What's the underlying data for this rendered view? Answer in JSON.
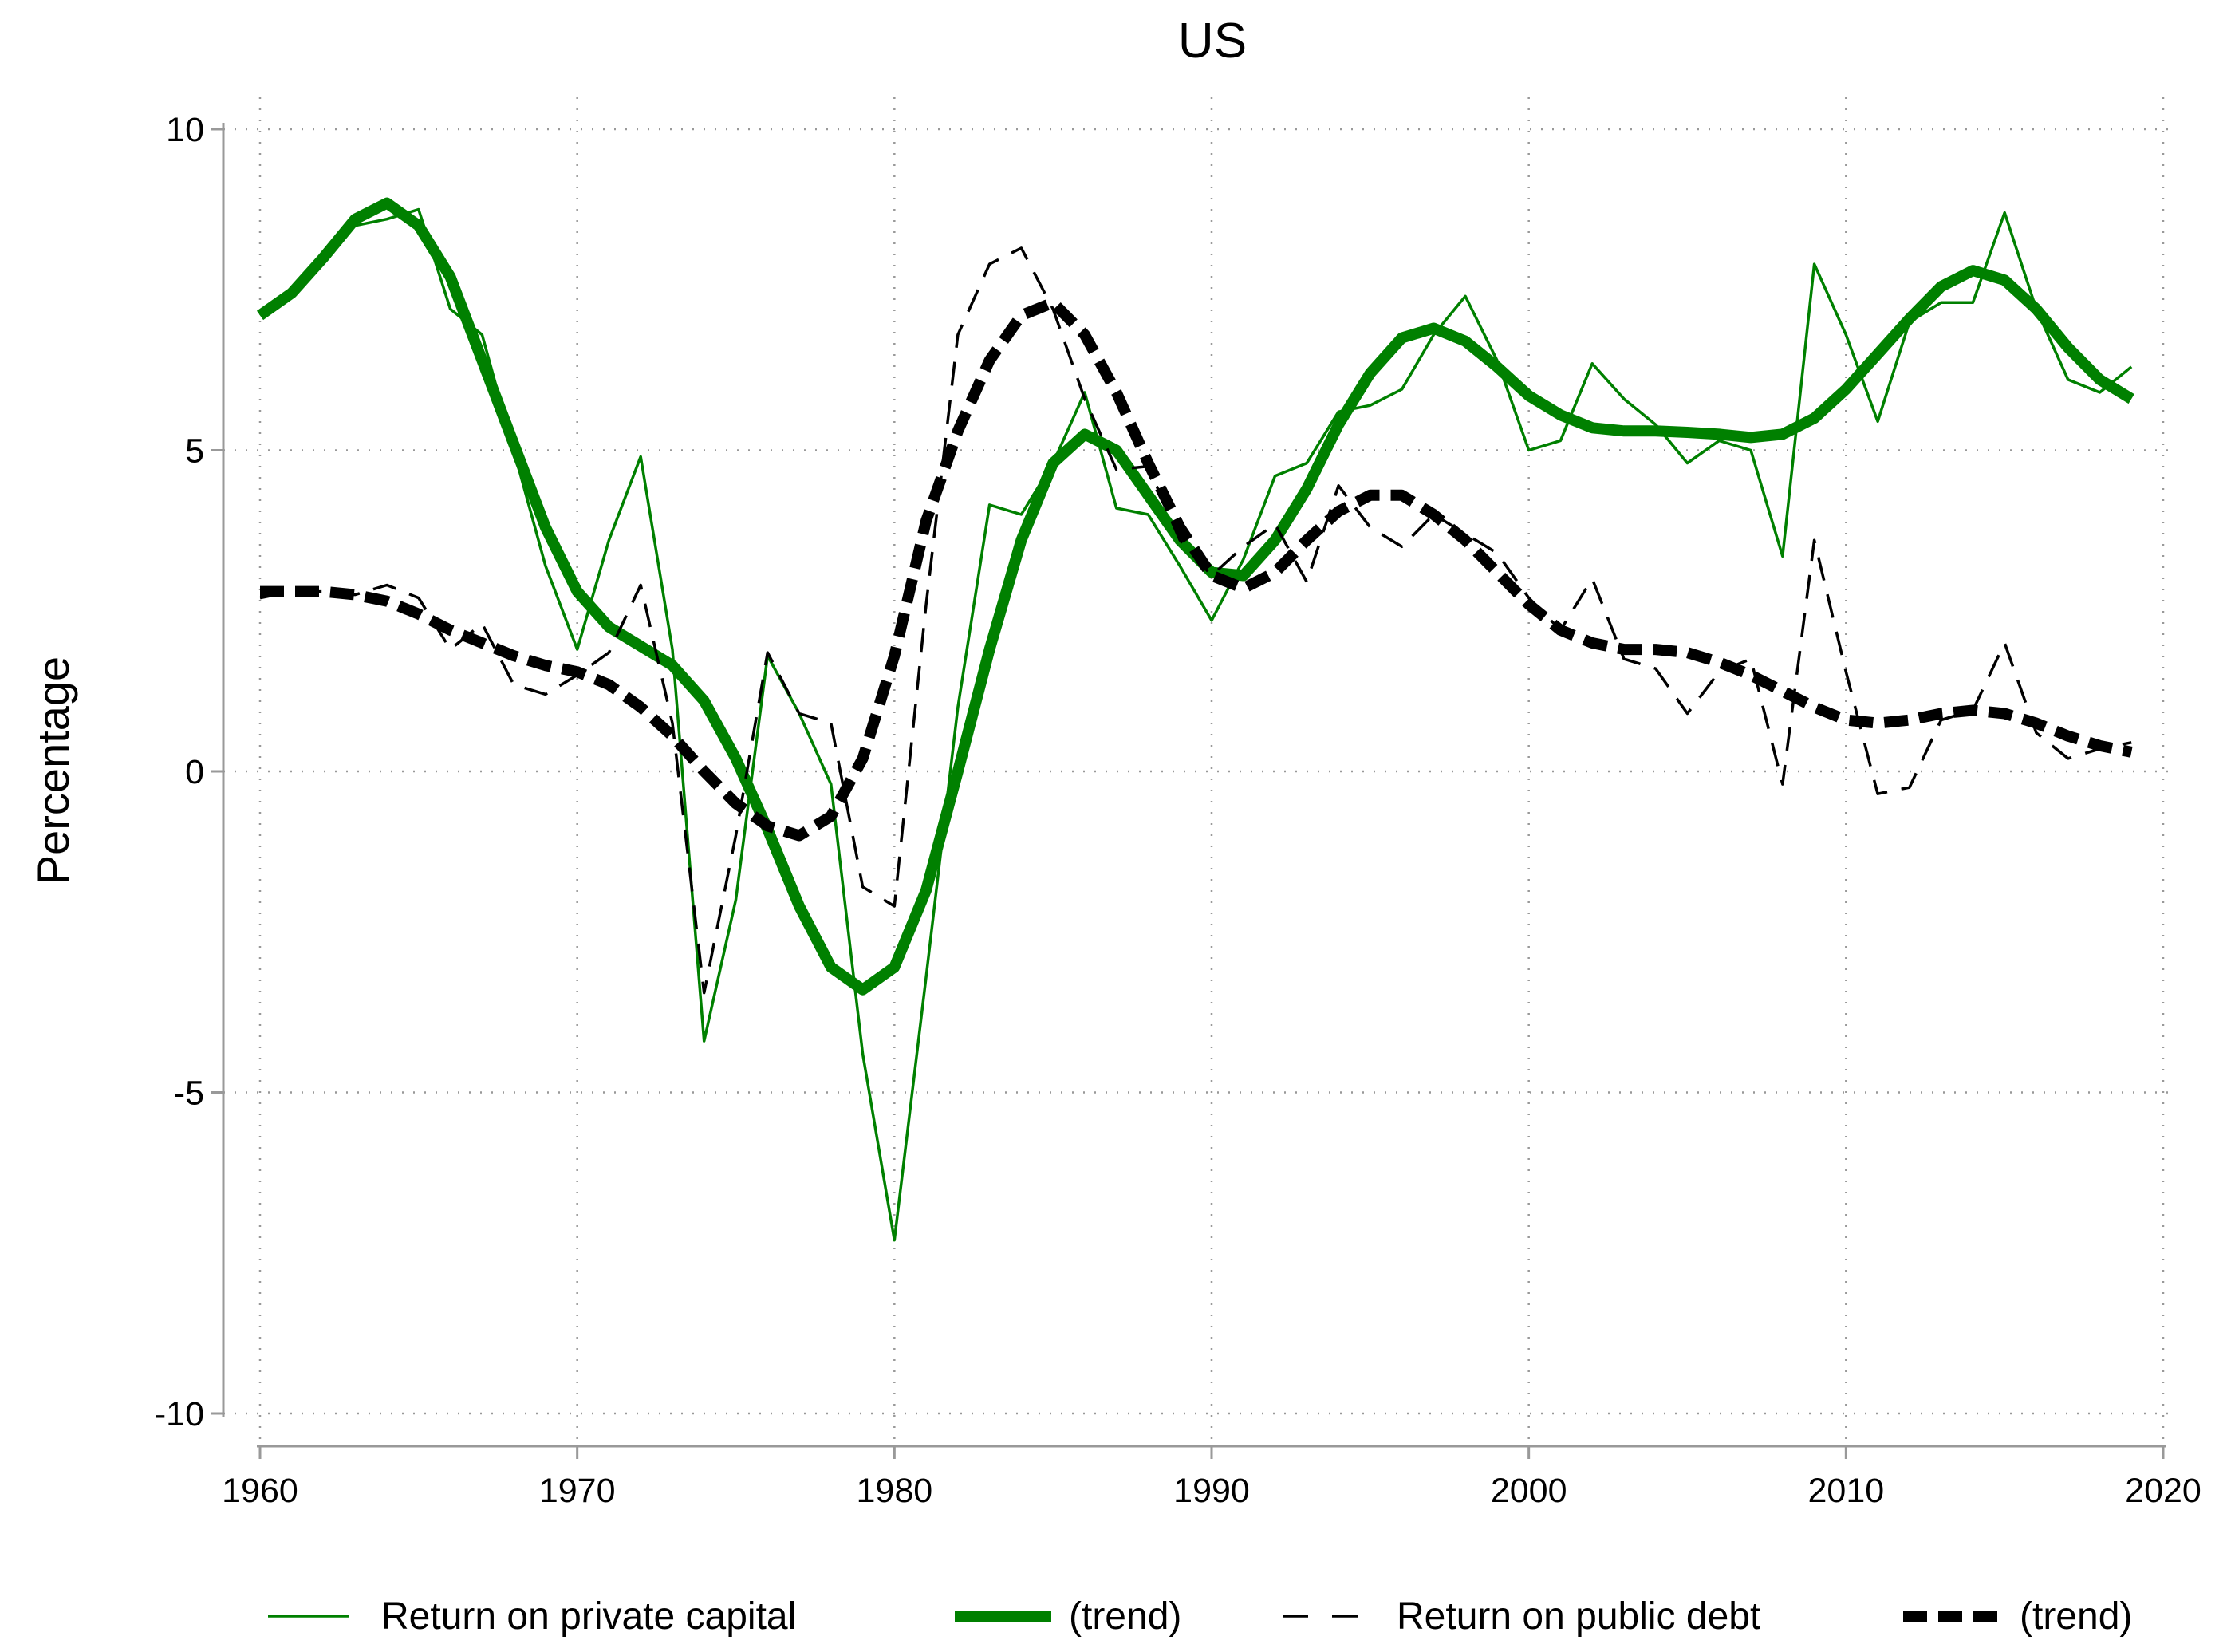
{
  "chart_data": {
    "type": "line",
    "title": "US",
    "y_label": "Percentage",
    "x": [
      1960,
      1961,
      1962,
      1963,
      1964,
      1965,
      1966,
      1967,
      1968,
      1969,
      1970,
      1971,
      1972,
      1973,
      1974,
      1975,
      1976,
      1977,
      1978,
      1979,
      1980,
      1981,
      1982,
      1983,
      1984,
      1985,
      1986,
      1987,
      1988,
      1989,
      1990,
      1991,
      1992,
      1993,
      1994,
      1995,
      1996,
      1997,
      1998,
      1999,
      2000,
      2001,
      2002,
      2003,
      2004,
      2005,
      2006,
      2007,
      2008,
      2009,
      2010,
      2011,
      2012,
      2013,
      2014,
      2015,
      2016,
      2017,
      2018,
      2019
    ],
    "series": [
      {
        "name": "Return on private capital",
        "color": "#008000",
        "style": "solid",
        "weight": "thin",
        "values": [
          7.1,
          7.5,
          8.0,
          8.5,
          8.6,
          8.75,
          7.2,
          6.8,
          5.0,
          3.2,
          1.9,
          3.6,
          4.9,
          1.9,
          -4.2,
          -2.0,
          1.8,
          0.9,
          -0.2,
          -4.4,
          -7.3,
          -3.2,
          1.0,
          4.15,
          4.0,
          4.8,
          5.9,
          4.1,
          4.0,
          3.2,
          2.35,
          3.3,
          4.6,
          4.8,
          5.6,
          5.7,
          5.95,
          6.8,
          7.4,
          6.4,
          5.0,
          5.15,
          6.35,
          5.8,
          5.4,
          4.8,
          5.15,
          5.0,
          3.35,
          7.9,
          6.8,
          5.45,
          7.0,
          7.3,
          7.3,
          8.7,
          7.2,
          6.1,
          5.9,
          6.3
        ]
      },
      {
        "name": "(trend)",
        "color": "#008000",
        "style": "solid",
        "weight": "thick",
        "values": [
          7.1,
          7.45,
          8.0,
          8.6,
          8.85,
          8.5,
          7.7,
          6.4,
          5.1,
          3.8,
          2.8,
          2.25,
          1.95,
          1.65,
          1.1,
          0.2,
          -0.9,
          -2.1,
          -3.05,
          -3.4,
          -3.05,
          -1.85,
          0.0,
          1.9,
          3.6,
          4.8,
          5.25,
          5.0,
          4.3,
          3.6,
          3.1,
          3.05,
          3.6,
          4.4,
          5.4,
          6.2,
          6.75,
          6.9,
          6.7,
          6.3,
          5.85,
          5.55,
          5.35,
          5.3,
          5.3,
          5.28,
          5.25,
          5.2,
          5.25,
          5.5,
          5.95,
          6.5,
          7.05,
          7.55,
          7.8,
          7.65,
          7.2,
          6.6,
          6.1,
          5.8
        ]
      },
      {
        "name": "Return on public debt",
        "color": "#000000",
        "style": "dashed",
        "weight": "thin",
        "values": [
          2.7,
          2.8,
          2.8,
          2.75,
          2.9,
          2.7,
          1.9,
          2.3,
          1.35,
          1.2,
          1.5,
          1.85,
          2.9,
          0.75,
          -3.45,
          -1.0,
          1.85,
          0.9,
          0.75,
          -1.8,
          -2.1,
          2.6,
          6.8,
          7.9,
          8.15,
          7.2,
          5.8,
          4.7,
          4.75,
          3.6,
          3.05,
          3.5,
          3.85,
          2.95,
          4.45,
          3.8,
          3.5,
          4.0,
          3.7,
          3.4,
          2.7,
          2.2,
          3.0,
          1.75,
          1.6,
          0.9,
          1.55,
          1.75,
          -0.2,
          3.6,
          1.55,
          -0.35,
          -0.25,
          0.8,
          0.95,
          2.0,
          0.6,
          0.2,
          0.35,
          0.45
        ]
      },
      {
        "name": "(trend)",
        "color": "#000000",
        "style": "dashed",
        "weight": "thick",
        "values": [
          2.8,
          2.8,
          2.8,
          2.75,
          2.65,
          2.45,
          2.2,
          2.0,
          1.8,
          1.65,
          1.55,
          1.35,
          1.0,
          0.55,
          0.0,
          -0.5,
          -0.85,
          -1.0,
          -0.7,
          0.2,
          1.8,
          3.9,
          5.3,
          6.4,
          7.1,
          7.3,
          6.8,
          5.9,
          4.8,
          3.8,
          3.05,
          2.85,
          3.1,
          3.6,
          4.05,
          4.3,
          4.3,
          4.0,
          3.6,
          3.1,
          2.6,
          2.2,
          2.0,
          1.9,
          1.9,
          1.85,
          1.7,
          1.5,
          1.25,
          1.0,
          0.8,
          0.75,
          0.8,
          0.9,
          0.95,
          0.9,
          0.75,
          0.55,
          0.4,
          0.3
        ]
      }
    ],
    "xlim": [
      1960,
      2020
    ],
    "xticks": [
      1960,
      1970,
      1980,
      1990,
      2000,
      2010,
      2020
    ],
    "ylim": [
      -10,
      10
    ],
    "yticks": [
      -10,
      -5,
      0,
      5,
      10
    ],
    "grid": true,
    "legend": "bottom"
  }
}
